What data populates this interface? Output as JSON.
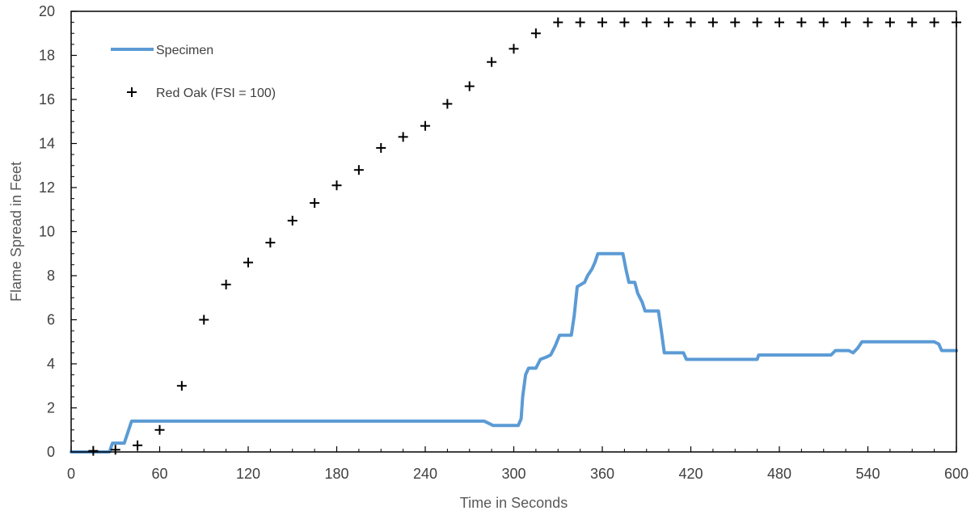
{
  "chart_data": {
    "type": "line",
    "xlabel": "Time in Seconds",
    "ylabel": "Flame Spread in Feet",
    "xlim": [
      0,
      600
    ],
    "ylim": [
      0,
      20
    ],
    "x_ticks": [
      0,
      60,
      120,
      180,
      240,
      300,
      360,
      420,
      480,
      540,
      600
    ],
    "y_ticks": [
      0,
      2,
      4,
      6,
      8,
      10,
      12,
      14,
      16,
      18,
      20
    ],
    "x_minor_step": 15,
    "y_minor_step": 0.5,
    "grid": false,
    "legend_position": "top-left",
    "series": [
      {
        "name": "Specimen",
        "style": "line",
        "color": "#5B9BD5",
        "points": [
          [
            0,
            0
          ],
          [
            26,
            0
          ],
          [
            28,
            0.4
          ],
          [
            36,
            0.4
          ],
          [
            41,
            1.4
          ],
          [
            60,
            1.4
          ],
          [
            120,
            1.4
          ],
          [
            180,
            1.4
          ],
          [
            240,
            1.4
          ],
          [
            280,
            1.4
          ],
          [
            283,
            1.3
          ],
          [
            286,
            1.2
          ],
          [
            303,
            1.2
          ],
          [
            305,
            1.5
          ],
          [
            306,
            2.5
          ],
          [
            308,
            3.5
          ],
          [
            310,
            3.8
          ],
          [
            315,
            3.8
          ],
          [
            318,
            4.2
          ],
          [
            322,
            4.3
          ],
          [
            325,
            4.4
          ],
          [
            328,
            4.8
          ],
          [
            331,
            5.3
          ],
          [
            339,
            5.3
          ],
          [
            341,
            6.2
          ],
          [
            343,
            7.5
          ],
          [
            348,
            7.7
          ],
          [
            350,
            8.0
          ],
          [
            353,
            8.3
          ],
          [
            355,
            8.6
          ],
          [
            357,
            9.0
          ],
          [
            374,
            9.0
          ],
          [
            376,
            8.3
          ],
          [
            378,
            7.7
          ],
          [
            382,
            7.7
          ],
          [
            384,
            7.2
          ],
          [
            387,
            6.8
          ],
          [
            389,
            6.4
          ],
          [
            398,
            6.4
          ],
          [
            400,
            5.5
          ],
          [
            402,
            4.5
          ],
          [
            415,
            4.5
          ],
          [
            417,
            4.2
          ],
          [
            465,
            4.2
          ],
          [
            466,
            4.4
          ],
          [
            515,
            4.4
          ],
          [
            518,
            4.6
          ],
          [
            527,
            4.6
          ],
          [
            530,
            4.5
          ],
          [
            533,
            4.7
          ],
          [
            536,
            5.0
          ],
          [
            585,
            5.0
          ],
          [
            588,
            4.9
          ],
          [
            590,
            4.6
          ],
          [
            600,
            4.6
          ]
        ]
      },
      {
        "name": "Red Oak (FSI = 100)",
        "style": "markers",
        "marker": "+",
        "color": "#000000",
        "points": [
          [
            15,
            0.05
          ],
          [
            30,
            0.1
          ],
          [
            45,
            0.3
          ],
          [
            60,
            1.0
          ],
          [
            75,
            3.0
          ],
          [
            90,
            6.0
          ],
          [
            105,
            7.6
          ],
          [
            120,
            8.6
          ],
          [
            135,
            9.5
          ],
          [
            150,
            10.5
          ],
          [
            165,
            11.3
          ],
          [
            180,
            12.1
          ],
          [
            195,
            12.8
          ],
          [
            210,
            13.8
          ],
          [
            225,
            14.3
          ],
          [
            240,
            14.8
          ],
          [
            255,
            15.8
          ],
          [
            270,
            16.6
          ],
          [
            285,
            17.7
          ],
          [
            300,
            18.3
          ],
          [
            315,
            19.0
          ],
          [
            330,
            19.5
          ],
          [
            345,
            19.5
          ],
          [
            360,
            19.5
          ],
          [
            375,
            19.5
          ],
          [
            390,
            19.5
          ],
          [
            405,
            19.5
          ],
          [
            420,
            19.5
          ],
          [
            435,
            19.5
          ],
          [
            450,
            19.5
          ],
          [
            465,
            19.5
          ],
          [
            480,
            19.5
          ],
          [
            495,
            19.5
          ],
          [
            510,
            19.5
          ],
          [
            525,
            19.5
          ],
          [
            540,
            19.5
          ],
          [
            555,
            19.5
          ],
          [
            570,
            19.5
          ],
          [
            585,
            19.5
          ],
          [
            600,
            19.5
          ]
        ]
      }
    ]
  }
}
